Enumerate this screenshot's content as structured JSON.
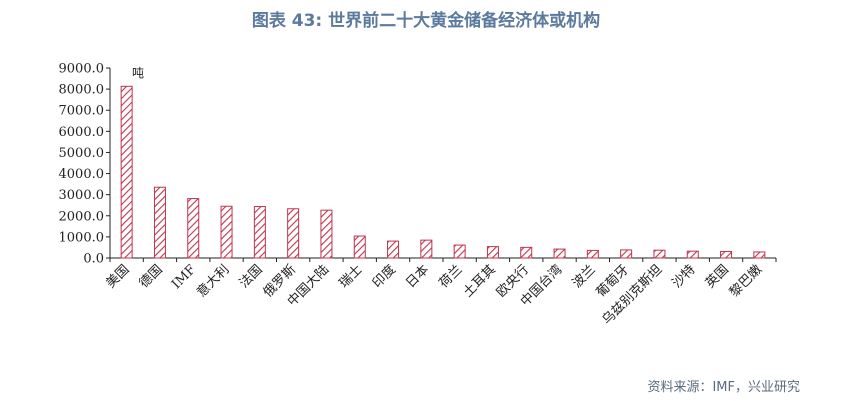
{
  "title": "图表 43: 世界前二十大黄金储备经济体或机构",
  "source": "资料来源：IMF，兴业研究",
  "colors": {
    "bar_stroke": "#c0344d",
    "title": "#5b7a9d"
  },
  "chart_data": {
    "type": "bar",
    "unit": "吨",
    "categories": [
      "美国",
      "德国",
      "IMF",
      "意大利",
      "法国",
      "俄罗斯",
      "中国大陆",
      "瑞士",
      "印度",
      "日本",
      "荷兰",
      "土耳其",
      "欧央行",
      "中国台湾",
      "波兰",
      "葡萄牙",
      "乌兹别克斯坦",
      "沙特",
      "英国",
      "黎巴嫩"
    ],
    "values": [
      8133.5,
      3352.6,
      2814.0,
      2451.8,
      2436.4,
      2332.7,
      2264.3,
      1040.0,
      800.8,
      846.0,
      612.5,
      540.0,
      504.8,
      422.4,
      359.2,
      382.6,
      370.0,
      323.1,
      310.3,
      286.8
    ],
    "yticks": [
      "0.0",
      "1000.0",
      "2000.0",
      "3000.0",
      "4000.0",
      "5000.0",
      "6000.0",
      "7000.0",
      "8000.0",
      "9000.0"
    ],
    "ylim": [
      0,
      9000
    ],
    "grid": false,
    "legend": "none"
  }
}
